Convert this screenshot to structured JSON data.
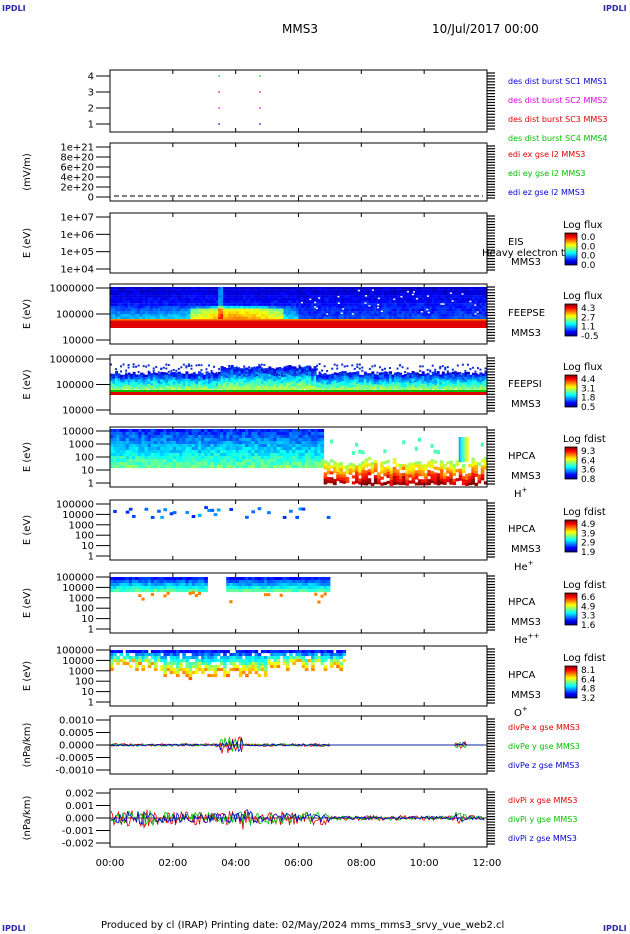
{
  "header": {
    "title": "MMS3",
    "date": "10/Jul/2017 00:00",
    "corner_tag": "IPDLI"
  },
  "footer": {
    "text": "Produced by cl (IRAP)   Printing date: 02/May/2024   mms_mms3_srvy_vue_web2.cl"
  },
  "colors": {
    "red": "#e00000",
    "green": "#00c000",
    "blue": "#0000d0",
    "magenta": "#e000e0",
    "frame": "#000000"
  },
  "chart_data": {
    "type": "heatmap",
    "x_tick_labels": [
      "00:00",
      "02:00",
      "04:00",
      "06:00",
      "08:00",
      "10:00",
      "12:00"
    ],
    "xlim_hours": [
      0,
      12
    ],
    "panels": [
      {
        "id": "burst",
        "type": "line",
        "ylabel": "",
        "y_tick_labels": [
          "4",
          "3",
          "2",
          "1"
        ],
        "legend": [
          {
            "label": "des dist burst SC1 MMS1",
            "color": "#0000d0"
          },
          {
            "label": "des dist burst SC2 MMS2",
            "color": "#e000e0"
          },
          {
            "label": "des dist burst SC3 MMS3",
            "color": "#e00000"
          },
          {
            "label": "des dist burst SC4 MMS4",
            "color": "#00c000"
          }
        ],
        "series": [
          {
            "name": "SC1",
            "level": 1,
            "intervals_hours": [
              [
                3.45,
                3.5
              ],
              [
                4.75,
                4.8
              ]
            ]
          },
          {
            "name": "SC2",
            "level": 2,
            "intervals_hours": [
              [
                3.45,
                3.5
              ],
              [
                4.75,
                4.8
              ]
            ]
          },
          {
            "name": "SC3",
            "level": 3,
            "intervals_hours": [
              [
                3.45,
                3.5
              ],
              [
                4.75,
                4.8
              ]
            ]
          },
          {
            "name": "SC4",
            "level": 4,
            "intervals_hours": [
              [
                3.45,
                3.5
              ],
              [
                4.75,
                4.8
              ]
            ]
          }
        ]
      },
      {
        "id": "edi",
        "type": "line",
        "ylabel": "(mV/m)",
        "y_tick_labels": [
          "1e+21",
          "8e+20",
          "6e+20",
          "4e+20",
          "2e+20",
          "0"
        ],
        "legend": [
          {
            "label": "edi ex gse l2 MMS3",
            "color": "#e00000"
          },
          {
            "label": "edi ey gse l2 MMS3",
            "color": "#00c000"
          },
          {
            "label": "edi ez gse l2 MMS3",
            "color": "#0000d0"
          }
        ]
      },
      {
        "id": "eis",
        "type": "heatmap",
        "ylabel": "E (eV)",
        "y_tick_labels": [
          "1e+07",
          "1e+06",
          "1e+05",
          "1e+04"
        ],
        "instrument": [
          "EIS",
          "MMS3"
        ],
        "overlay_label": "Heavy electron to",
        "colorbar_title": "Log flux",
        "colorbar_ticks": [
          "0.0",
          "0.0",
          "0.0",
          "0.0"
        ]
      },
      {
        "id": "feepse",
        "type": "heatmap",
        "ylabel": "E (eV)",
        "y_tick_labels": [
          "1000000",
          "100000",
          "10000"
        ],
        "instrument": [
          "FEEPSE",
          "MMS3"
        ],
        "colorbar_title": "Log flux",
        "colorbar_ticks": [
          "4.3",
          "2.7",
          "1.1",
          "-0.5"
        ]
      },
      {
        "id": "feepsi",
        "type": "heatmap",
        "ylabel": "E (eV)",
        "y_tick_labels": [
          "1000000",
          "100000",
          "10000"
        ],
        "instrument": [
          "FEEPSI",
          "MMS3"
        ],
        "colorbar_title": "Log flux",
        "colorbar_ticks": [
          "4.4",
          "3.1",
          "1.8",
          "0.5"
        ]
      },
      {
        "id": "hpca_h",
        "type": "heatmap",
        "ylabel": "E (eV)",
        "y_tick_labels": [
          "10000",
          "1000",
          "100",
          "10",
          "1"
        ],
        "instrument": [
          "HPCA",
          "MMS3"
        ],
        "species": "H",
        "species_sup": "+",
        "colorbar_title": "Log fdist",
        "colorbar_ticks": [
          "9.3",
          "6.4",
          "3.6",
          "0.8"
        ]
      },
      {
        "id": "hpca_he",
        "type": "heatmap",
        "ylabel": "E (eV)",
        "y_tick_labels": [
          "100000",
          "10000",
          "1000",
          "100",
          "10",
          "1"
        ],
        "instrument": [
          "HPCA",
          "MMS3"
        ],
        "species": "He",
        "species_sup": "+",
        "colorbar_title": "Log fdist",
        "colorbar_ticks": [
          "4.9",
          "3.9",
          "2.9",
          "1.9"
        ]
      },
      {
        "id": "hpca_he2",
        "type": "heatmap",
        "ylabel": "E (eV)",
        "y_tick_labels": [
          "100000",
          "10000",
          "1000",
          "100",
          "10",
          "1"
        ],
        "instrument": [
          "HPCA",
          "MMS3"
        ],
        "species": "He",
        "species_sup": "++",
        "colorbar_title": "Log fdist",
        "colorbar_ticks": [
          "6.6",
          "4.9",
          "3.3",
          "1.6"
        ]
      },
      {
        "id": "hpca_o",
        "type": "heatmap",
        "ylabel": "E (eV)",
        "y_tick_labels": [
          "100000",
          "10000",
          "1000",
          "100",
          "10",
          "1"
        ],
        "instrument": [
          "HPCA",
          "MMS3"
        ],
        "species": "O",
        "species_sup": "+",
        "colorbar_title": "Log fdist",
        "colorbar_ticks": [
          "8.1",
          "6.4",
          "4.8",
          "3.2"
        ]
      },
      {
        "id": "divpe",
        "type": "line",
        "ylabel": "(nPa/km)",
        "y_tick_labels": [
          "0.0010",
          "0.0005",
          "0.0000",
          "-0.0005",
          "-0.0010"
        ],
        "legend": [
          {
            "label": "divPe x gse MMS3",
            "color": "#e00000"
          },
          {
            "label": "divPe y gse MMS3",
            "color": "#00c000"
          },
          {
            "label": "divPe z gse MMS3",
            "color": "#0000d0"
          }
        ]
      },
      {
        "id": "divpi",
        "type": "line",
        "ylabel": "(nPa/km)",
        "y_tick_labels": [
          "0.002",
          "0.001",
          "0.000",
          "-0.001",
          "-0.002"
        ],
        "legend": [
          {
            "label": "divPi x gse MMS3",
            "color": "#e00000"
          },
          {
            "label": "divPi y gse MMS3",
            "color": "#00c000"
          },
          {
            "label": "divPi z gse MMS3",
            "color": "#0000d0"
          }
        ]
      }
    ]
  }
}
